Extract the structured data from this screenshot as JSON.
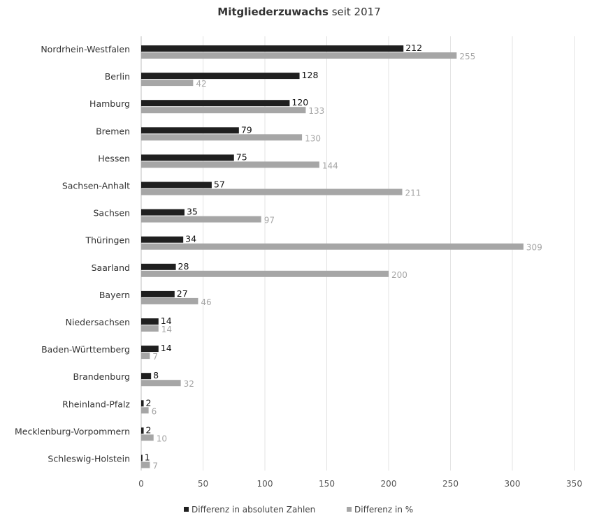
{
  "chart_data": {
    "type": "bar",
    "orientation": "horizontal",
    "title_bold": "Mitgliederzuwachs",
    "title_rest": "seit 2017",
    "categories": [
      "Nordrhein-Westfalen",
      "Berlin",
      "Hamburg",
      "Bremen",
      "Hessen",
      "Sachsen-Anhalt",
      "Sachsen",
      "Thüringen",
      "Saarland",
      "Bayern",
      "Niedersachsen",
      "Baden-Württemberg",
      "Brandenburg",
      "Rheinland-Pfalz",
      "Mecklenburg-Vorpommern",
      "Schleswig-Holstein"
    ],
    "series": [
      {
        "name": "Differenz in absoluten Zahlen",
        "color": "#1f1f1f",
        "label_color": "#111111",
        "values": [
          212,
          128,
          120,
          79,
          75,
          57,
          35,
          34,
          28,
          27,
          14,
          14,
          8,
          2,
          2,
          1
        ]
      },
      {
        "name": "Differenz in %",
        "color": "#a6a6a6",
        "label_color": "#a6a6a6",
        "values": [
          255,
          42,
          133,
          130,
          144,
          211,
          97,
          309,
          200,
          46,
          14,
          7,
          32,
          6,
          10,
          7
        ]
      }
    ],
    "x_ticks": [
      "0",
      "50",
      "100",
      "150",
      "200",
      "250",
      "300",
      "350"
    ],
    "xlim": [
      0,
      350
    ],
    "grid": true,
    "legend_position": "bottom"
  }
}
